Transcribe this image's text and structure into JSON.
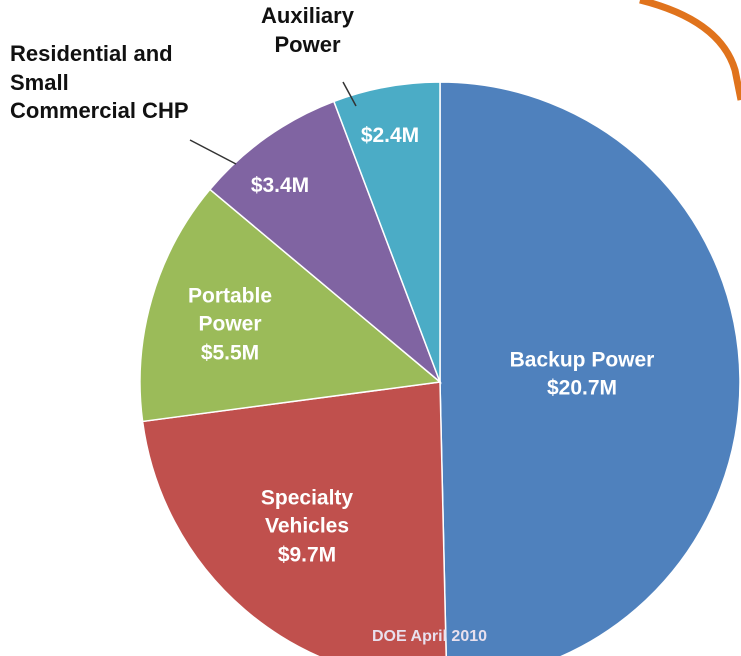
{
  "chart_data": {
    "type": "pie",
    "categories": [
      "Backup Power",
      "Specialty Vehicles",
      "Portable Power",
      "Residential and Small Commercial CHP",
      "Auxiliary Power"
    ],
    "values": [
      20.7,
      9.7,
      5.5,
      3.4,
      2.4
    ],
    "value_labels": [
      "$20.7M",
      "$9.7M",
      "$5.5M",
      "$3.4M",
      "$2.4M"
    ],
    "colors": [
      "#4f81bd",
      "#c0504d",
      "#9bbb59",
      "#8064a2",
      "#4bacc6"
    ],
    "annotation": "DOE April 2010"
  }
}
